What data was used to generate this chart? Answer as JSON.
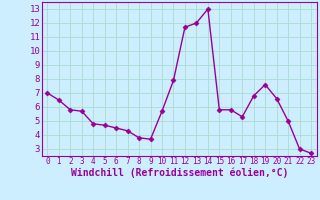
{
  "x": [
    0,
    1,
    2,
    3,
    4,
    5,
    6,
    7,
    8,
    9,
    10,
    11,
    12,
    13,
    14,
    15,
    16,
    17,
    18,
    19,
    20,
    21,
    22,
    23
  ],
  "y": [
    7.0,
    6.5,
    5.8,
    5.7,
    4.8,
    4.7,
    4.5,
    4.3,
    3.8,
    3.7,
    5.7,
    7.9,
    11.7,
    12.0,
    13.0,
    5.8,
    5.8,
    5.3,
    6.8,
    7.6,
    6.6,
    5.0,
    3.0,
    2.7
  ],
  "line_color": "#990099",
  "marker": "D",
  "marker_size": 2.5,
  "linewidth": 1.0,
  "xlabel": "Windchill (Refroidissement éolien,°C)",
  "xlabel_fontsize": 7,
  "bg_color": "#cceeff",
  "grid_color": "#aaddcc",
  "xlim": [
    -0.5,
    23.5
  ],
  "ylim": [
    2.5,
    13.5
  ],
  "xticks": [
    0,
    1,
    2,
    3,
    4,
    5,
    6,
    7,
    8,
    9,
    10,
    11,
    12,
    13,
    14,
    15,
    16,
    17,
    18,
    19,
    20,
    21,
    22,
    23
  ],
  "yticks": [
    3,
    4,
    5,
    6,
    7,
    8,
    9,
    10,
    11,
    12,
    13
  ],
  "xtick_fontsize": 5.5,
  "ytick_fontsize": 6.5
}
